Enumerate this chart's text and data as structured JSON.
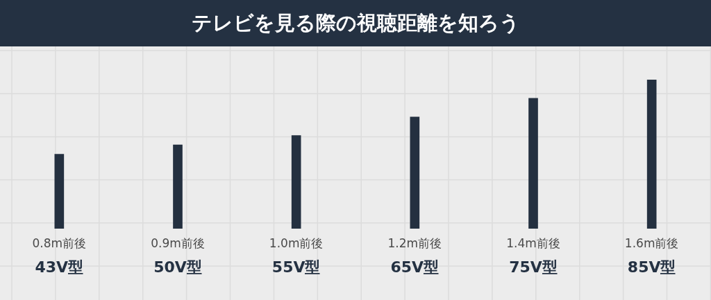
{
  "chart_data": {
    "type": "bar",
    "title": "テレビを見る際の視聴距離を知ろう",
    "categories": [
      "43V型",
      "50V型",
      "55V型",
      "65V型",
      "75V型",
      "85V型"
    ],
    "values": [
      0.8,
      0.9,
      1.0,
      1.2,
      1.4,
      1.6
    ],
    "value_labels": [
      "0.8m前後",
      "0.9m前後",
      "1.0m前後",
      "1.2m前後",
      "1.4m前後",
      "1.6m前後"
    ],
    "color": "#243040",
    "ylim": [
      0,
      1.6
    ],
    "tick_labels": "x",
    "grid": true
  }
}
